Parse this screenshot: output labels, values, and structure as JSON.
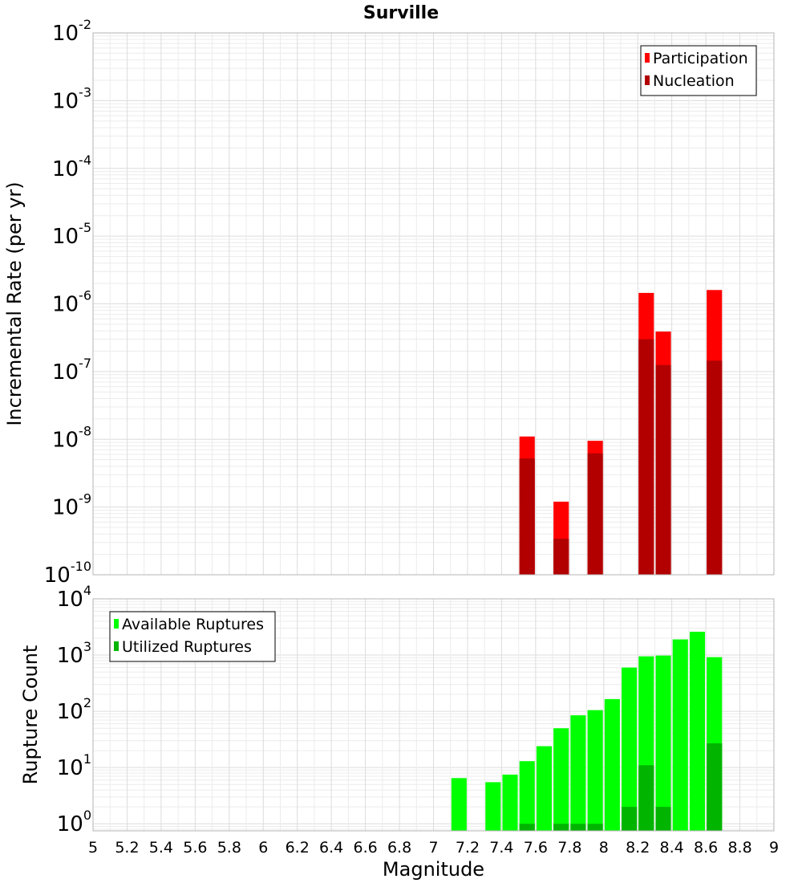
{
  "chart_data": [
    {
      "type": "bar",
      "title": "Surville",
      "xlabel": "Magnitude",
      "ylabel": "Incremental Rate (per yr)",
      "yscale": "log",
      "ylim": [
        1e-10,
        0.01
      ],
      "xlim": [
        5,
        9
      ],
      "ytick_exponents": [
        -2,
        -3,
        -4,
        -5,
        -6,
        -7,
        -8,
        -9,
        -10
      ],
      "grid": true,
      "legend_position": "top-right",
      "bar_width": 0.09,
      "series": [
        {
          "name": "Participation",
          "color": "#ff0000",
          "x": [
            7.55,
            7.75,
            7.95,
            8.25,
            8.35,
            8.65
          ],
          "values": [
            1.1e-08,
            1.2e-09,
            9.5e-09,
            1.45e-06,
            3.9e-07,
            1.6e-06
          ]
        },
        {
          "name": "Nucleation",
          "color": "#b20000",
          "x": [
            7.55,
            7.75,
            7.95,
            8.25,
            8.35,
            8.65
          ],
          "values": [
            5.2e-09,
            3.4e-10,
            6.2e-09,
            3e-07,
            1.25e-07,
            1.45e-07
          ]
        }
      ]
    },
    {
      "type": "bar",
      "xlabel": "Magnitude",
      "ylabel": "Rupture Count",
      "yscale": "log",
      "ylim": [
        0.75,
        10000
      ],
      "xlim": [
        5,
        9
      ],
      "ytick_exponents": [
        4,
        3,
        2,
        1,
        0
      ],
      "xticks": [
        "5",
        "5.2",
        "5.4",
        "5.6",
        "5.8",
        "6",
        "6.2",
        "6.4",
        "6.6",
        "6.8",
        "7",
        "7.2",
        "7.4",
        "7.6",
        "7.8",
        "8",
        "8.2",
        "8.4",
        "8.6",
        "8.8",
        "9"
      ],
      "grid": true,
      "legend_position": "top-left",
      "bar_width": 0.09,
      "series": [
        {
          "name": "Available Ruptures",
          "color": "#00ff00",
          "x": [
            7.15,
            7.35,
            7.45,
            7.55,
            7.65,
            7.75,
            7.85,
            7.95,
            8.05,
            8.15,
            8.25,
            8.35,
            8.45,
            8.55,
            8.65
          ],
          "values": [
            6.5,
            5.5,
            7.5,
            13,
            24,
            50,
            85,
            105,
            165,
            600,
            950,
            980,
            1900,
            2600,
            920
          ]
        },
        {
          "name": "Utilized Ruptures",
          "color": "#00b400",
          "x": [
            7.55,
            7.75,
            7.85,
            7.95,
            8.15,
            8.25,
            8.35,
            8.65
          ],
          "values": [
            1,
            1,
            1,
            1,
            2,
            11,
            2,
            27
          ]
        }
      ]
    }
  ]
}
